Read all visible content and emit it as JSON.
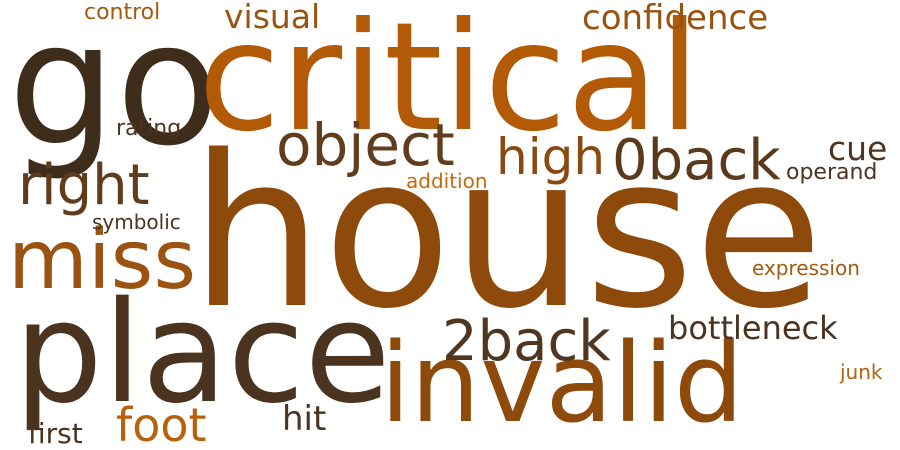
{
  "words": {
    "go": "go",
    "critical": "critical",
    "house": "house",
    "place": "place",
    "invalid": "invalid",
    "miss": "miss",
    "object": "object",
    "zero_back": "0back",
    "high": "high",
    "right": "right",
    "two_back": "2back",
    "confidence": "confidence",
    "visual": "visual",
    "cue": "cue",
    "bottleneck": "bottleneck",
    "foot": "foot",
    "hit": "hit",
    "first": "first",
    "control": "control",
    "rating": "rating",
    "symbolic": "symbolic",
    "addition": "addition",
    "operand": "operand",
    "expression": "expression",
    "junk": "junk"
  },
  "colors": {
    "background": "#ffffff",
    "dark_brown": "#3f2d1c",
    "orange_brown": "#b35a06",
    "mid_brown": "#8e4a0a"
  }
}
